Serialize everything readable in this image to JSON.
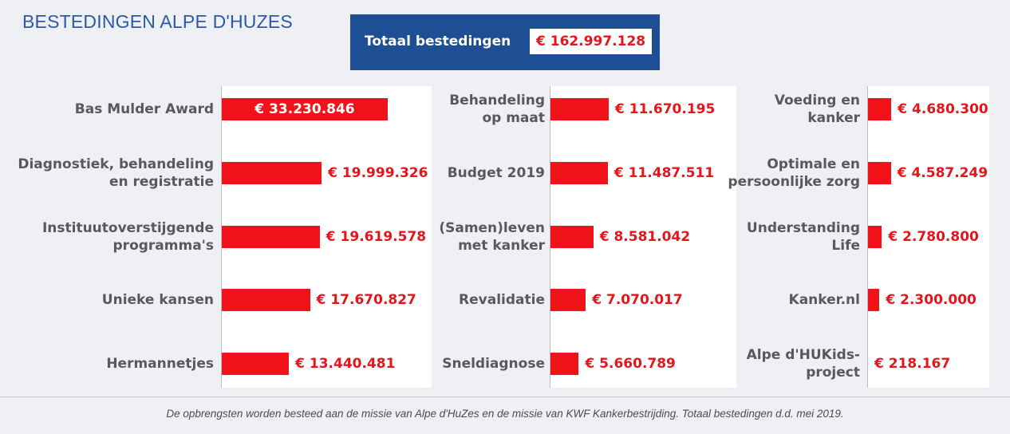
{
  "title": "BESTEDINGEN ALPE D'HUZES",
  "total": {
    "label": "Totaal bestedingen",
    "value": "€ 162.997.128"
  },
  "footnote": "De opbrengsten worden besteed aan de missie van Alpe d'HuZes en de missie van KWF Kankerbestrijding. Totaal bestedingen d.d. mei 2019.",
  "colors": {
    "bar": "#f0131a",
    "value_text": "#e4161b",
    "total_box": "#1e4f94",
    "title": "#2b5aa8"
  },
  "chart_data": [
    {
      "type": "bar",
      "orientation": "horizontal",
      "categories": [
        "Bas Mulder Award",
        "Diagnostiek, behandeling en registratie",
        "Instituutoverstijgende programma's",
        "Unieke kansen",
        "Hermannetjes"
      ],
      "category_lines": [
        [
          "Bas Mulder Award"
        ],
        [
          "Diagnostiek, behandeling",
          "en registratie"
        ],
        [
          "Instituutoverstijgende",
          "programma's"
        ],
        [
          "Unieke kansen"
        ],
        [
          "Hermannetjes"
        ]
      ],
      "values": [
        33230846,
        19999326,
        19619578,
        17670827,
        13440481
      ],
      "value_labels": [
        "€ 33.230.846",
        "€ 19.999.326",
        "€ 19.619.578",
        "€ 17.670.827",
        "€ 13.440.481"
      ]
    },
    {
      "type": "bar",
      "orientation": "horizontal",
      "categories": [
        "Behandeling op maat",
        "Budget 2019",
        "(Samen)leven met kanker",
        "Revalidatie",
        "Sneldiagnose"
      ],
      "category_lines": [
        [
          "Behandeling",
          "op maat"
        ],
        [
          "Budget 2019"
        ],
        [
          "(Samen)leven",
          "met kanker"
        ],
        [
          "Revalidatie"
        ],
        [
          "Sneldiagnose"
        ]
      ],
      "values": [
        11670195,
        11487511,
        8581042,
        7070017,
        5660789
      ],
      "value_labels": [
        "€ 11.670.195",
        "€ 11.487.511",
        "€ 8.581.042",
        "€ 7.070.017",
        "€ 5.660.789"
      ]
    },
    {
      "type": "bar",
      "orientation": "horizontal",
      "categories": [
        "Voeding en kanker",
        "Optimale en persoonlijke zorg",
        "Understanding Life",
        "Kanker.nl",
        "Alpe d'HUKids-project"
      ],
      "category_lines": [
        [
          "Voeding en",
          "kanker"
        ],
        [
          "Optimale en",
          "persoonlijke zorg"
        ],
        [
          "Understanding",
          "Life"
        ],
        [
          "Kanker.nl"
        ],
        [
          "Alpe d'HUKids-",
          "project"
        ]
      ],
      "values": [
        4680300,
        4587249,
        2780800,
        2300000,
        218167
      ],
      "value_labels": [
        "€ 4.680.300",
        "€ 4.587.249",
        "€ 2.780.800",
        "€ 2.300.000",
        "€ 218.167"
      ]
    }
  ]
}
